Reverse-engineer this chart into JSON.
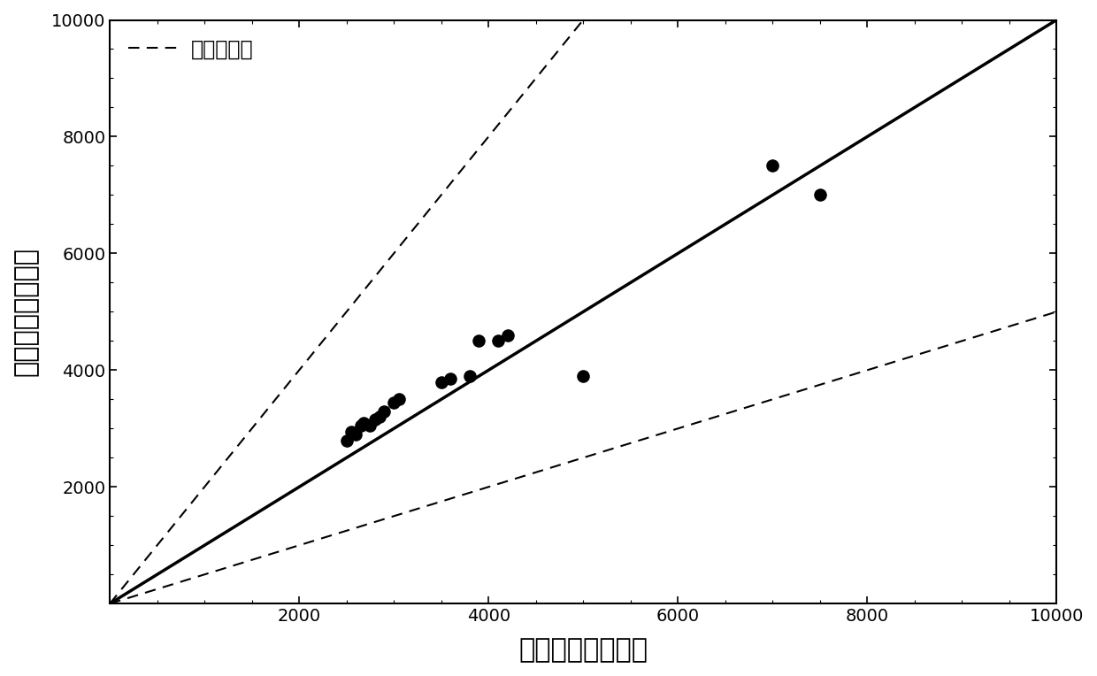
{
  "title": "",
  "xlabel": "实验寿命（圈数）",
  "ylabel": "预测寿命（圈数）",
  "legend_label": "二倍误差带",
  "xlim": [
    0,
    10000
  ],
  "ylim": [
    0,
    10000
  ],
  "xticks": [
    0,
    2000,
    4000,
    6000,
    8000,
    10000
  ],
  "xtick_labels": [
    "",
    "2000",
    "4000",
    "6000",
    "8000",
    "10000"
  ],
  "yticks": [
    0,
    2000,
    4000,
    6000,
    8000,
    10000
  ],
  "ytick_labels": [
    "",
    "2000",
    "4000",
    "6000",
    "8000",
    "10000"
  ],
  "scatter_x": [
    2500,
    2550,
    2600,
    2650,
    2680,
    2750,
    2800,
    2850,
    2900,
    3000,
    3050,
    3500,
    3600,
    3800,
    3900,
    4100,
    4200,
    5000,
    7000,
    7500
  ],
  "scatter_y": [
    2800,
    2950,
    2900,
    3050,
    3100,
    3050,
    3150,
    3200,
    3300,
    3450,
    3500,
    3800,
    3850,
    3900,
    4500,
    4500,
    4600,
    3900,
    7500,
    7000
  ],
  "point_color": "#000000",
  "line_color": "#000000",
  "dashed_color": "#000000",
  "factor": 2,
  "background_color": "#ffffff",
  "font_size_label": 22,
  "font_size_tick": 14,
  "font_size_legend": 17
}
